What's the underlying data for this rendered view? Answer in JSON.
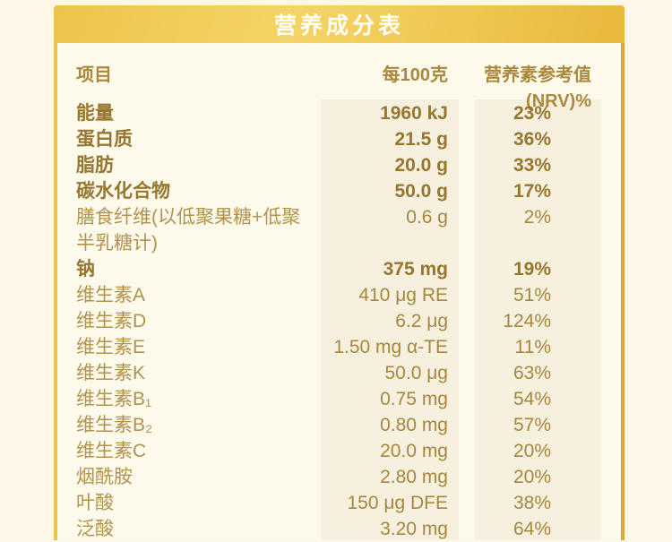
{
  "page": {
    "title": "营养成分表"
  },
  "table": {
    "columns": [
      "项目",
      "每100克",
      "营养素参考值(NRV)%"
    ],
    "rows": [
      {
        "label": "能量",
        "value": "1960 kJ",
        "nrv": "23%",
        "bold": true
      },
      {
        "label": "蛋白质",
        "value": "21.5 g",
        "nrv": "36%",
        "bold": true
      },
      {
        "label": "脂肪",
        "value": "20.0 g",
        "nrv": "33%",
        "bold": true
      },
      {
        "label": "碳水化合物",
        "value": "50.0 g",
        "nrv": "17%",
        "bold": true
      },
      {
        "label": "膳食纤维(以低聚果糖+低聚\n半乳糖计)",
        "value": "0.6 g",
        "nrv": "2%",
        "bold": false
      },
      {
        "label": "钠",
        "value": "375 mg",
        "nrv": "19%",
        "bold": true
      },
      {
        "label": "维生素A",
        "value": "410 μg RE",
        "nrv": "51%",
        "bold": false
      },
      {
        "label": "维生素D",
        "value": "6.2 μg",
        "nrv": "124%",
        "bold": false
      },
      {
        "label": "维生素E",
        "value": "1.50 mg α-TE",
        "nrv": "11%",
        "bold": false
      },
      {
        "label": "维生素K",
        "value": "50.0 μg",
        "nrv": "63%",
        "bold": false
      },
      {
        "label": "维生素B₁",
        "value": "0.75 mg",
        "nrv": "54%",
        "bold": false
      },
      {
        "label": "维生素B₂",
        "value": "0.80 mg",
        "nrv": "57%",
        "bold": false
      },
      {
        "label": "维生素C",
        "value": "20.0 mg",
        "nrv": "20%",
        "bold": false
      },
      {
        "label": "烟酰胺",
        "value": "2.80 mg",
        "nrv": "20%",
        "bold": false
      },
      {
        "label": "叶酸",
        "value": "150 μg DFE",
        "nrv": "38%",
        "bold": false
      },
      {
        "label": "泛酸",
        "value": "3.20 mg",
        "nrv": "64%",
        "bold": false
      }
    ]
  },
  "colors": {
    "outer_background": "#fcf7e7",
    "panel_background": "#fdfaec",
    "column_shade": "#f6f0de",
    "title_bar_gold_light": "#f5d466",
    "title_bar_gold_dark": "#e7b93c",
    "border_gold_left": "#ecc24a",
    "border_gold_right": "#dcaa31",
    "title_text": "#ffffff",
    "header_text": "#aa883c",
    "label_text": "#b3924b",
    "value_text": "#a8873d",
    "bold_text": "#97772f"
  }
}
